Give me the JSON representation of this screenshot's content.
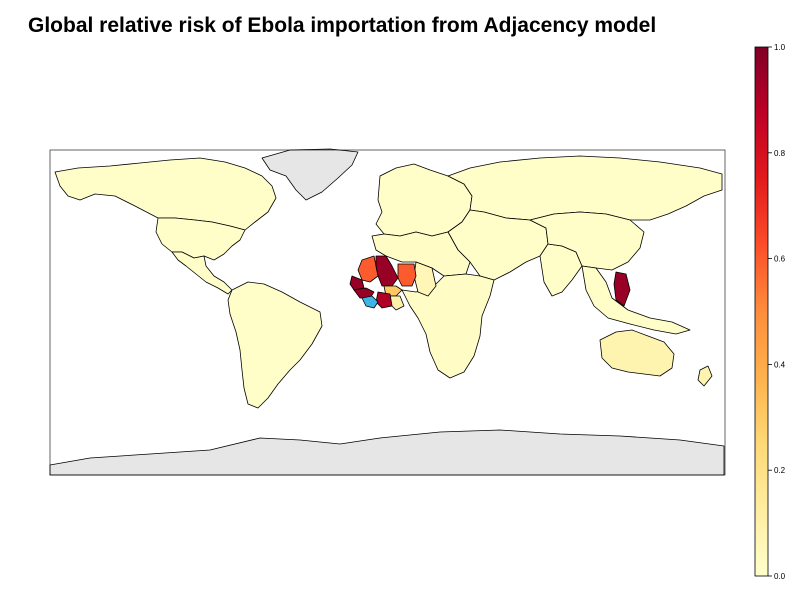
{
  "title": "Global relative risk of Ebola importation from Adjacency model",
  "colorbar": {
    "min": 0.0,
    "max": 1.0,
    "ticks": [
      {
        "value": 0.0,
        "label": "0.0"
      },
      {
        "value": 0.2,
        "label": "0.2"
      },
      {
        "value": 0.4,
        "label": "0.4"
      },
      {
        "value": 0.6,
        "label": "0.6"
      },
      {
        "value": 0.8,
        "label": "0.8"
      },
      {
        "value": 1.0,
        "label": "1.0"
      }
    ],
    "stops": [
      {
        "value": 0.0,
        "color": "#ffffcc"
      },
      {
        "value": 0.125,
        "color": "#ffeda0"
      },
      {
        "value": 0.25,
        "color": "#fed976"
      },
      {
        "value": 0.375,
        "color": "#feb24c"
      },
      {
        "value": 0.5,
        "color": "#fd8d3c"
      },
      {
        "value": 0.625,
        "color": "#fc4e2a"
      },
      {
        "value": 0.75,
        "color": "#e31a1c"
      },
      {
        "value": 0.875,
        "color": "#bd0026"
      },
      {
        "value": 1.0,
        "color": "#800026"
      }
    ]
  },
  "colors": {
    "ocean": "#ffffff",
    "low_risk": "#ffffcc",
    "no_data": "#e6e6e6",
    "outbreak_origin": "#3fb4e6",
    "border": "#000000"
  },
  "regions": [
    {
      "name": "canada-alaska",
      "value": 0.01
    },
    {
      "name": "usa",
      "value": 0.01
    },
    {
      "name": "mexico-central-america",
      "value": 0.01
    },
    {
      "name": "south-america",
      "value": 0.01
    },
    {
      "name": "greenland",
      "value": null
    },
    {
      "name": "europe",
      "value": 0.01
    },
    {
      "name": "russia",
      "value": 0.01
    },
    {
      "name": "middle-east-central-asia",
      "value": 0.01
    },
    {
      "name": "south-asia",
      "value": 0.01
    },
    {
      "name": "east-asia",
      "value": 0.01
    },
    {
      "name": "southeast-asia",
      "value": 0.01
    },
    {
      "name": "north-africa",
      "value": 0.02
    },
    {
      "name": "africa-rest",
      "value": 0.02
    },
    {
      "name": "australia",
      "value": 0.08
    },
    {
      "name": "mauritania",
      "value": 0.6
    },
    {
      "name": "mali",
      "value": 0.95
    },
    {
      "name": "niger",
      "value": 0.6
    },
    {
      "name": "senegal",
      "value": 0.95
    },
    {
      "name": "guinea",
      "value": 0.95
    },
    {
      "name": "cote-divoire",
      "value": 0.9
    },
    {
      "name": "burkina-faso",
      "value": 0.3
    },
    {
      "name": "ghana",
      "value": 0.1
    },
    {
      "name": "sierra-leone-liberia",
      "value": "origin"
    },
    {
      "name": "chad",
      "value": 0.06
    },
    {
      "name": "philippines",
      "value": 0.95
    },
    {
      "name": "antarctica",
      "value": null
    }
  ]
}
